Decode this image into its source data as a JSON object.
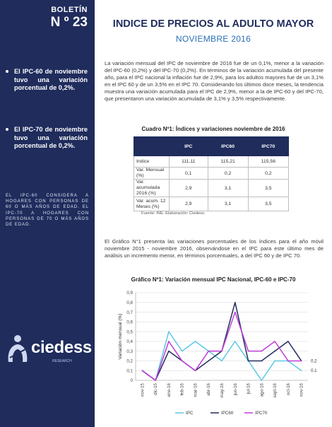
{
  "sidebar": {
    "bulletin_label": "BOLETÍN",
    "bulletin_number": "N º 23",
    "bullet1": "El IPC-60 de noviembre tuvo una variación porcentual de 0,2%.",
    "bullet2": "El IPC-70 de noviembre tuvo una variación porcentual de 0,2%.",
    "note": "EL IPC-60 CONSIDERA A HOGARES CON PERSONAS DE 60 O MÁS AÑOS DE EDAD. EL IPC-70 A HOGARES CON PERSONAS DE 70 O MÁS AÑOS DE EDAD.",
    "logo_name": "ciedess",
    "logo_sub": "RESEARCH"
  },
  "header": {
    "title": "INDICE DE PRECIOS AL ADULTO MAYOR",
    "subtitle": "NOVIEMBRE 2016"
  },
  "paragraph1": "La variación mensual del IPC de noviembre de 2016 fue de un 0,1%, menor a la variación del IPC-60 (0,2%) y del IPC-70 (0,2%). En términos de la variación acumulada del presente año, para el IPC nacional la inflación fue de 2,9%, para los adultos mayores fue de un 3,1% en el IPC 60 y de un 3,5% en el IPC 70. Considerando los últimos doce meses, la tendencia muestra una variación acumulada para el IPC de 2,9%, menor a la de IPC-60 y del IPC-70, que presentaron una variación acumulada de 3,1% y 3,5% respectivamente.",
  "table": {
    "title": "Cuadro Nº1: Índices y variaciones noviembre de 2016",
    "headers": [
      "",
      "IPC",
      "IPC60",
      "IPC70"
    ],
    "rows": [
      [
        "Indice",
        "111,11",
        "115,21",
        "115,56"
      ],
      [
        "Var. Mensual (%)",
        "0,1",
        "0,2",
        "0,2"
      ],
      [
        "Var. acumulada 2016 (%)",
        "2,9",
        "3,1",
        "3,5"
      ],
      [
        "Var. acum. 12 Meses (%)",
        "2,9",
        "3,1",
        "3,5"
      ]
    ],
    "source": "Fuente: INE. Elaboración: Ciedess."
  },
  "paragraph2": "El Gráfico N°1 presenta las variaciones porcentuales de los índices para el año móvil noviembre 2015 - noviembre 2016, observándose en el IPC para este último mes de análisis un incremento menor, en términos porcentuales, a del IPC 60 y de IPC 70.",
  "chart_data": {
    "type": "line",
    "title": "Gráfico Nº1: Variación mensual IPC Nacional, IPC-60 e IPC-70",
    "ylabel": "Variación mensual (%)",
    "xlabel": "",
    "ylim": [
      0,
      0.9
    ],
    "yticks": [
      "0",
      "0,1",
      "0,2",
      "0,3",
      "0,4",
      "0,5",
      "0,6",
      "0,7",
      "0,8",
      "0,9"
    ],
    "categories": [
      "nov-15",
      "dic-15",
      "ene-16",
      "feb-16",
      "mar-16",
      "abr-16",
      "may-16",
      "jun-16",
      "jul-16",
      "ago-16",
      "sept-16",
      "oct-16",
      "nov-16"
    ],
    "series": [
      {
        "name": "IPC",
        "color": "#5bc8e6",
        "values": [
          0.1,
          0.0,
          0.5,
          0.3,
          0.4,
          0.3,
          0.2,
          0.4,
          0.2,
          0.0,
          0.2,
          0.2,
          0.1
        ]
      },
      {
        "name": "IPC60",
        "color": "#1f2c5c",
        "values": [
          0.1,
          0.0,
          0.3,
          0.2,
          0.1,
          0.2,
          0.3,
          0.8,
          0.2,
          0.2,
          0.3,
          0.4,
          0.2
        ]
      },
      {
        "name": "IPC70",
        "color": "#c03bd6",
        "values": [
          0.1,
          0.0,
          0.4,
          0.2,
          0.1,
          0.3,
          0.3,
          0.7,
          0.3,
          0.3,
          0.4,
          0.2,
          0.2
        ]
      }
    ],
    "end_labels": [
      "0,2",
      "0,1"
    ],
    "grid": true,
    "legend": "bottom"
  }
}
